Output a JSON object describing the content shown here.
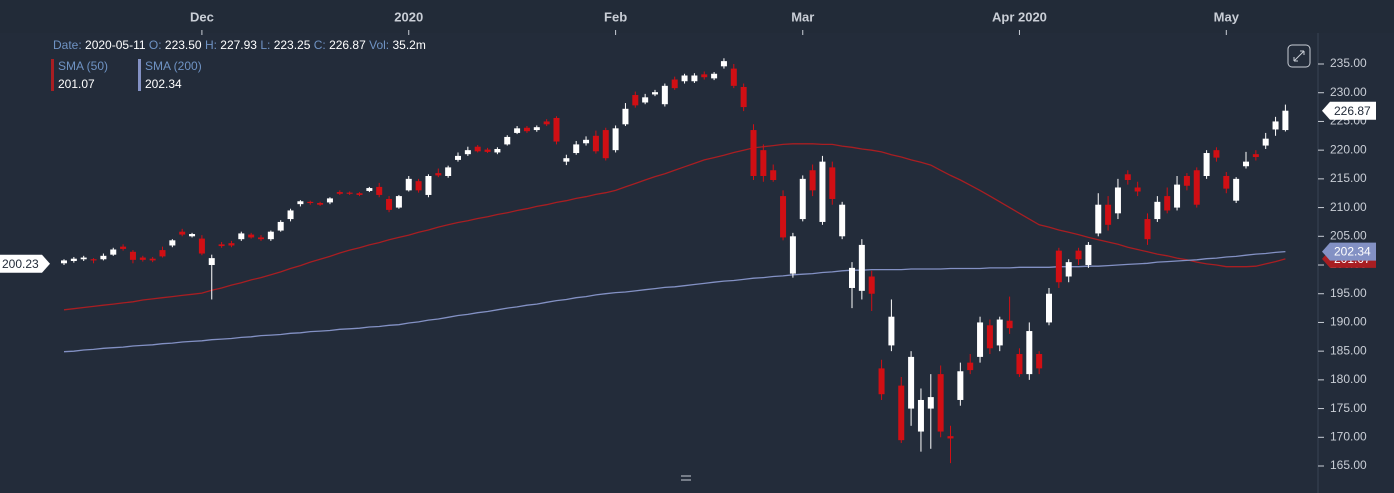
{
  "chart_data": {
    "type": "candlestick",
    "categories": [
      null,
      null,
      null,
      null,
      null,
      null,
      null,
      null,
      null,
      null,
      null,
      null,
      null,
      null,
      "Dec",
      null,
      null,
      null,
      null,
      null,
      null,
      null,
      null,
      null,
      null,
      null,
      null,
      null,
      null,
      null,
      null,
      null,
      null,
      null,
      null,
      "2020",
      null,
      null,
      null,
      null,
      null,
      null,
      null,
      null,
      null,
      null,
      null,
      null,
      null,
      null,
      null,
      null,
      null,
      null,
      null,
      null,
      "Feb",
      null,
      null,
      null,
      null,
      null,
      null,
      null,
      null,
      null,
      null,
      null,
      null,
      null,
      null,
      null,
      null,
      null,
      null,
      "Mar",
      null,
      null,
      null,
      null,
      null,
      null,
      null,
      null,
      null,
      null,
      null,
      null,
      null,
      null,
      null,
      null,
      null,
      null,
      null,
      null,
      null,
      "Apr 2020",
      null,
      null,
      null,
      null,
      null,
      null,
      null,
      null,
      null,
      null,
      null,
      null,
      null,
      null,
      null,
      null,
      null,
      null,
      null,
      null,
      "May",
      null,
      null,
      null,
      null,
      null,
      null
    ],
    "open": [
      200.3,
      200.7,
      201.0,
      201.0,
      201.0,
      201.8,
      203.2,
      202.3,
      201.3,
      201.1,
      202.6,
      203.4,
      205.8,
      205.0,
      204.6,
      200.0,
      203.6,
      203.8,
      204.5,
      205.3,
      204.8,
      204.5,
      206.0,
      208.0,
      210.6,
      211.0,
      210.8,
      210.9,
      212.7,
      212.6,
      212.5,
      212.9,
      213.6,
      211.5,
      210.0,
      213.0,
      214.6,
      212.2,
      216.0,
      215.5,
      218.3,
      219.3,
      220.6,
      220.1,
      219.6,
      221.0,
      223.0,
      223.9,
      223.5,
      225.0,
      225.6,
      218.0,
      219.5,
      221.2,
      222.5,
      223.5,
      220.0,
      224.5,
      229.6,
      228.3,
      229.7,
      228.0,
      232.3,
      232.0,
      232.0,
      233.2,
      232.5,
      234.6,
      234.2,
      231.0,
      223.5,
      220.0,
      216.5,
      212.0,
      198.5,
      208.0,
      216.5,
      207.5,
      217.0,
      205.0,
      196.0,
      195.5,
      198.0,
      182.0,
      186.0,
      179.0,
      175.0,
      171.0,
      175.0,
      181.0,
      170.2,
      176.5,
      183.0,
      184.0,
      189.5,
      186.0,
      190.3,
      184.5,
      181.0,
      184.5,
      190.0,
      202.5,
      198.0,
      202.5,
      200.0,
      205.5,
      210.5,
      209.0,
      215.8,
      213.5,
      208.0,
      208.0,
      212.0,
      210.0,
      215.5,
      216.5,
      215.5,
      220.0,
      215.5,
      211.2,
      217.2,
      219.3,
      220.8,
      223.6,
      223.5
    ],
    "high": [
      201.0,
      201.4,
      201.6,
      201.2,
      202.0,
      203.0,
      203.6,
      202.6,
      201.6,
      201.4,
      203.2,
      204.5,
      206.3,
      205.6,
      205.2,
      201.8,
      204.0,
      204.2,
      205.8,
      205.6,
      205.2,
      206.0,
      207.8,
      209.8,
      211.3,
      211.2,
      211.0,
      211.8,
      213.0,
      212.8,
      212.7,
      213.6,
      214.3,
      212.0,
      212.2,
      215.5,
      215.0,
      215.8,
      216.8,
      217.3,
      219.6,
      220.6,
      220.9,
      220.4,
      220.5,
      222.6,
      224.2,
      224.2,
      224.3,
      225.4,
      225.9,
      219.2,
      221.6,
      222.4,
      223.4,
      223.9,
      224.3,
      228.2,
      230.2,
      229.8,
      230.5,
      231.6,
      232.8,
      233.3,
      233.4,
      233.7,
      233.6,
      236.0,
      235.0,
      231.6,
      224.5,
      221.0,
      217.5,
      213.0,
      205.6,
      215.6,
      217.5,
      219.0,
      218.0,
      211.0,
      200.5,
      204.5,
      199.0,
      183.5,
      194.0,
      180.5,
      185.0,
      178.5,
      181.0,
      182.5,
      172.0,
      183.0,
      184.5,
      191.0,
      190.5,
      191.0,
      194.5,
      185.5,
      190.0,
      185.0,
      196.0,
      203.0,
      201.0,
      203.0,
      204.0,
      212.5,
      212.0,
      215.0,
      216.5,
      214.5,
      209.0,
      212.0,
      213.5,
      215.5,
      216.0,
      217.0,
      220.0,
      220.5,
      216.2,
      215.3,
      219.7,
      220.0,
      223.0,
      225.8,
      227.93
    ],
    "low": [
      200.0,
      200.4,
      200.7,
      200.3,
      200.8,
      201.6,
      202.5,
      200.3,
      200.6,
      200.5,
      201.3,
      203.1,
      205.0,
      204.8,
      201.7,
      194.0,
      203.0,
      203.1,
      204.2,
      204.6,
      204.2,
      204.2,
      205.8,
      207.6,
      210.2,
      210.5,
      210.3,
      210.6,
      212.2,
      212.2,
      212.0,
      212.7,
      211.8,
      209.2,
      209.8,
      212.8,
      212.6,
      211.8,
      215.3,
      215.2,
      218.0,
      219.0,
      219.6,
      219.5,
      219.3,
      220.8,
      222.8,
      223.0,
      223.2,
      224.2,
      221.0,
      217.4,
      219.2,
      220.8,
      219.4,
      218.2,
      219.6,
      224.2,
      227.4,
      228.0,
      229.4,
      227.6,
      230.5,
      231.6,
      231.7,
      232.3,
      232.2,
      234.2,
      230.8,
      226.8,
      214.8,
      214.5,
      214.5,
      204.3,
      197.8,
      207.6,
      212.0,
      207.0,
      210.5,
      204.5,
      192.5,
      194.0,
      192.0,
      176.5,
      185.0,
      169.0,
      172.0,
      167.5,
      168.0,
      170.0,
      165.5,
      175.5,
      181.0,
      183.0,
      184.5,
      185.0,
      188.0,
      180.5,
      180.0,
      181.0,
      189.5,
      196.0,
      197.0,
      200.0,
      199.5,
      205.0,
      206.0,
      208.0,
      214.0,
      212.0,
      203.5,
      207.5,
      209.0,
      209.5,
      213.0,
      210.0,
      215.0,
      218.0,
      212.5,
      210.8,
      216.8,
      218.2,
      220.2,
      222.5,
      223.25
    ],
    "close": [
      200.8,
      201.1,
      201.3,
      200.8,
      201.6,
      202.7,
      202.8,
      200.9,
      200.9,
      200.8,
      201.5,
      204.3,
      205.3,
      205.4,
      202.0,
      201.2,
      203.3,
      203.4,
      205.5,
      204.8,
      204.5,
      205.8,
      207.5,
      209.5,
      211.1,
      210.8,
      210.5,
      211.6,
      212.4,
      212.4,
      212.2,
      213.4,
      212.2,
      209.6,
      212.0,
      215.0,
      213.0,
      215.5,
      215.6,
      217.0,
      219.0,
      220.0,
      219.8,
      219.7,
      220.2,
      222.3,
      223.8,
      223.3,
      224.0,
      224.5,
      221.5,
      218.6,
      221.0,
      221.8,
      219.8,
      218.6,
      223.8,
      227.2,
      227.8,
      229.2,
      230.1,
      231.2,
      230.8,
      233.0,
      233.0,
      232.7,
      233.3,
      235.5,
      231.2,
      227.5,
      215.5,
      215.5,
      214.8,
      204.8,
      205.0,
      215.0,
      213.0,
      218.0,
      211.5,
      210.5,
      199.5,
      203.5,
      195.0,
      177.5,
      191.0,
      169.5,
      184.0,
      176.5,
      177.0,
      171.0,
      169.8,
      181.5,
      181.7,
      190.0,
      185.5,
      190.5,
      189.0,
      181.0,
      188.5,
      182.0,
      195.0,
      197.0,
      200.5,
      201.0,
      203.5,
      210.5,
      207.0,
      213.5,
      214.8,
      212.8,
      204.5,
      211.0,
      209.5,
      214.0,
      213.8,
      210.5,
      219.5,
      218.7,
      213.3,
      215.0,
      218.0,
      218.8,
      222.0,
      225.0,
      226.87
    ],
    "up_color": "#ffffff",
    "down_color": "#d10f14",
    "series": [
      {
        "name": "SMA (50)",
        "color": "#a81e22",
        "values": [
          192.2,
          192.4,
          192.6,
          192.8,
          193.0,
          193.2,
          193.4,
          193.6,
          193.9,
          194.1,
          194.3,
          194.5,
          194.7,
          194.9,
          195.1,
          195.6,
          196.0,
          196.5,
          196.9,
          197.4,
          197.8,
          198.3,
          198.8,
          199.4,
          199.9,
          200.5,
          201.0,
          201.5,
          202.1,
          202.6,
          203.0,
          203.5,
          203.9,
          204.4,
          204.8,
          205.2,
          205.7,
          206.1,
          206.6,
          207.0,
          207.4,
          207.7,
          208.1,
          208.4,
          208.8,
          209.1,
          209.5,
          209.8,
          210.2,
          210.5,
          210.9,
          211.2,
          211.6,
          211.9,
          212.3,
          212.6,
          213.0,
          213.6,
          214.2,
          214.8,
          215.4,
          215.9,
          216.5,
          217.1,
          217.7,
          218.3,
          218.7,
          219.1,
          219.6,
          220.0,
          220.4,
          220.6,
          220.8,
          221.0,
          221.1,
          221.1,
          221.1,
          221.0,
          221.0,
          220.7,
          220.5,
          220.2,
          220.0,
          219.7,
          219.2,
          218.8,
          218.3,
          217.9,
          217.4,
          216.5,
          215.6,
          214.8,
          213.9,
          213.0,
          212.0,
          211.0,
          210.0,
          209.0,
          208.0,
          207.0,
          206.6,
          206.1,
          205.7,
          205.3,
          204.8,
          204.4,
          204.0,
          203.6,
          203.1,
          202.7,
          202.3,
          201.9,
          201.6,
          201.2,
          200.9,
          200.5,
          200.2,
          200.0,
          199.7,
          199.7,
          199.7,
          199.8,
          200.2,
          200.6,
          201.07
        ]
      },
      {
        "name": "SMA (200)",
        "color": "#8391c4",
        "values": [
          184.9,
          185.0,
          185.2,
          185.3,
          185.5,
          185.6,
          185.7,
          185.9,
          186.0,
          186.1,
          186.3,
          186.4,
          186.6,
          186.7,
          186.8,
          187.0,
          187.1,
          187.2,
          187.4,
          187.5,
          187.7,
          187.8,
          187.9,
          188.1,
          188.2,
          188.4,
          188.5,
          188.6,
          188.8,
          188.9,
          189.0,
          189.2,
          189.3,
          189.5,
          189.6,
          189.9,
          190.1,
          190.4,
          190.6,
          190.9,
          191.2,
          191.4,
          191.7,
          191.9,
          192.2,
          192.5,
          192.7,
          193.0,
          193.2,
          193.5,
          193.8,
          194.0,
          194.3,
          194.5,
          194.8,
          195.0,
          195.2,
          195.3,
          195.5,
          195.7,
          195.9,
          196.1,
          196.2,
          196.4,
          196.6,
          196.8,
          197.0,
          197.2,
          197.3,
          197.5,
          197.7,
          197.8,
          198.0,
          198.1,
          198.3,
          198.4,
          198.5,
          198.7,
          198.8,
          199.0,
          199.1,
          199.1,
          199.2,
          199.2,
          199.2,
          199.2,
          199.3,
          199.3,
          199.3,
          199.3,
          199.4,
          199.4,
          199.4,
          199.4,
          199.5,
          199.5,
          199.5,
          199.6,
          199.6,
          199.6,
          199.6,
          199.7,
          199.7,
          199.7,
          199.8,
          199.8,
          199.9,
          200.0,
          200.1,
          200.2,
          200.3,
          200.5,
          200.6,
          200.7,
          200.8,
          200.9,
          201.1,
          201.2,
          201.4,
          201.5,
          201.7,
          201.9,
          202.0,
          202.2,
          202.34
        ]
      }
    ],
    "ylim": [
      160.3,
      240.4
    ],
    "yticks": [
      {
        "value": 165,
        "label": "165.00"
      },
      {
        "value": 170,
        "label": "170.00"
      },
      {
        "value": 175,
        "label": "175.00"
      },
      {
        "value": 180,
        "label": "180.00"
      },
      {
        "value": 185,
        "label": "185.00"
      },
      {
        "value": 190,
        "label": "190.00"
      },
      {
        "value": 195,
        "label": "195.00"
      },
      {
        "value": 200,
        "label": "200.00"
      },
      {
        "value": 205,
        "label": "205.00"
      },
      {
        "value": 210,
        "label": "210.00"
      },
      {
        "value": 215,
        "label": "215.00"
      },
      {
        "value": 220,
        "label": "220.00"
      },
      {
        "value": 225,
        "label": "225.00"
      },
      {
        "value": 230,
        "label": "230.00"
      },
      {
        "value": 235,
        "label": "235.00"
      }
    ],
    "left_price_tag": 200.23,
    "info_header": {
      "date_label": "Date:",
      "date": "2020-05-11",
      "o_label": "O:",
      "o": "223.50",
      "h_label": "H:",
      "h": "227.93",
      "l_label": "L:",
      "l": "223.25",
      "c_label": "C:",
      "c": "226.87",
      "vol_label": "Vol:",
      "vol": "35.2m"
    }
  }
}
